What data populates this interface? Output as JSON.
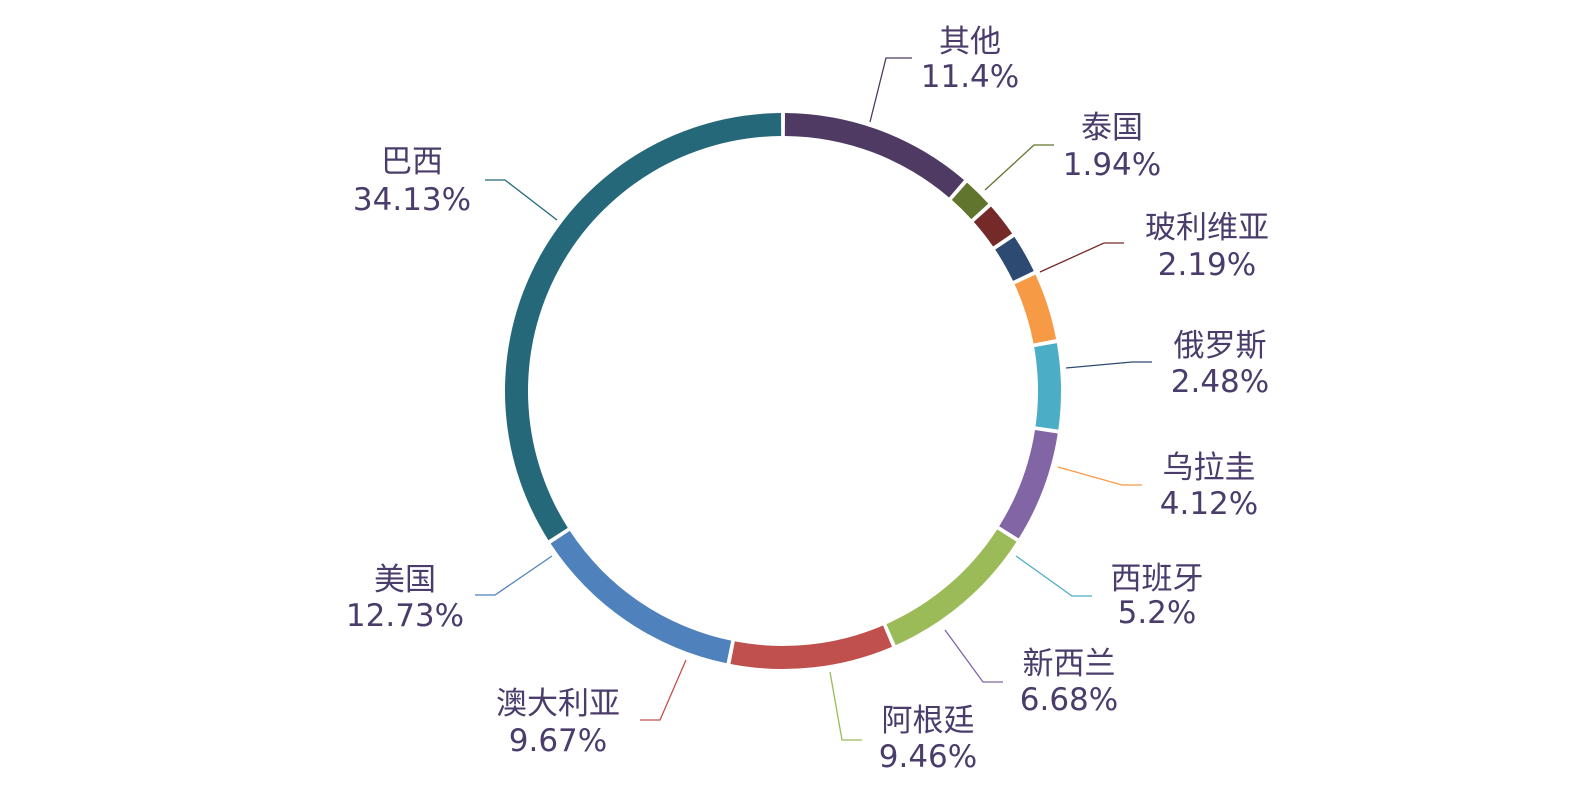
{
  "chart_data": {
    "type": "pie",
    "style": "donut",
    "slices": [
      {
        "name": "其他",
        "value": 11.4,
        "label": "11.4%",
        "color": "#4e3a63"
      },
      {
        "name": "泰国",
        "value": 1.94,
        "label": "1.94%",
        "color": "#62752f"
      },
      {
        "name": "玻利维亚",
        "value": 2.19,
        "label": "2.19%",
        "color": "#732a29"
      },
      {
        "name": "俄罗斯",
        "value": 2.48,
        "label": "2.48%",
        "color": "#2c4a72"
      },
      {
        "name": "乌拉圭",
        "value": 4.12,
        "label": "4.12%",
        "color": "#f79a46"
      },
      {
        "name": "西班牙",
        "value": 5.2,
        "label": "5.2%",
        "color": "#4badc6"
      },
      {
        "name": "新西兰",
        "value": 6.68,
        "label": "6.68%",
        "color": "#8165a4"
      },
      {
        "name": "阿根廷",
        "value": 9.46,
        "label": "9.46%",
        "color": "#9bbb59"
      },
      {
        "name": "澳大利亚",
        "value": 9.67,
        "label": "9.67%",
        "color": "#c0504d"
      },
      {
        "name": "美国",
        "value": 12.73,
        "label": "12.73%",
        "color": "#4f81bd"
      },
      {
        "name": "巴西",
        "value": 34.13,
        "label": "34.13%",
        "color": "#256879"
      }
    ]
  }
}
